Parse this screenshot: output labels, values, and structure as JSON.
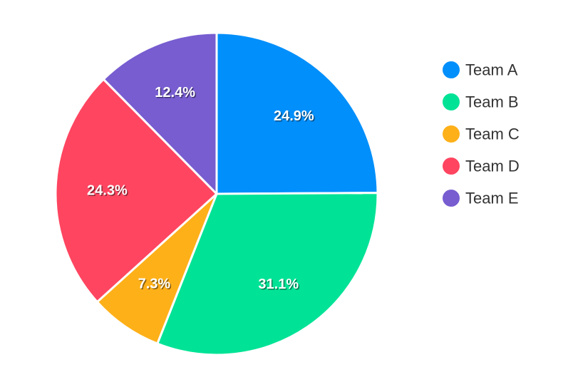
{
  "chart_data": {
    "type": "pie",
    "categories": [
      "Team A",
      "Team B",
      "Team C",
      "Team D",
      "Team E"
    ],
    "values": [
      24.9,
      31.1,
      7.3,
      24.3,
      12.4
    ],
    "data_labels": [
      "24.9%",
      "31.1%",
      "7.3%",
      "24.3%",
      "12.4%"
    ],
    "colors": [
      "#008ffb",
      "#00e396",
      "#feb019",
      "#ff4560",
      "#775dd0"
    ],
    "legend_position": "right",
    "start": "12 o'clock, clockwise"
  }
}
